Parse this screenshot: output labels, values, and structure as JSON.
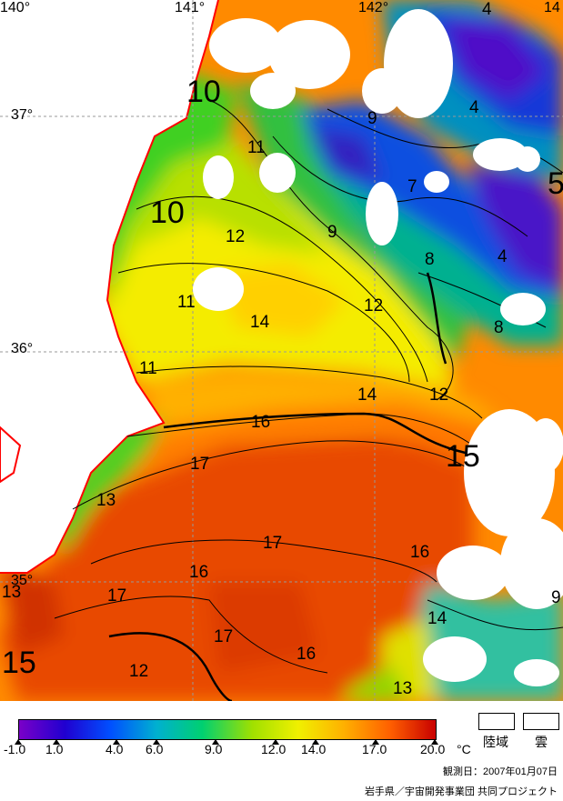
{
  "map": {
    "lon_labels": [
      "140°",
      "141°",
      "142°",
      "14"
    ],
    "lat_labels": [
      "37°",
      "36°",
      "35°"
    ],
    "isotherm_labels": [
      {
        "text": "4",
        "size": "normal"
      },
      {
        "text": "10",
        "size": "big"
      },
      {
        "text": "9",
        "size": "normal"
      },
      {
        "text": "4",
        "size": "normal"
      },
      {
        "text": "11",
        "size": "normal"
      },
      {
        "text": "7",
        "size": "normal"
      },
      {
        "text": "5",
        "size": "big"
      },
      {
        "text": "10",
        "size": "big"
      },
      {
        "text": "12",
        "size": "normal"
      },
      {
        "text": "9",
        "size": "normal"
      },
      {
        "text": "8",
        "size": "normal"
      },
      {
        "text": "4",
        "size": "normal"
      },
      {
        "text": "11",
        "size": "normal"
      },
      {
        "text": "12",
        "size": "normal"
      },
      {
        "text": "14",
        "size": "normal"
      },
      {
        "text": "8",
        "size": "normal"
      },
      {
        "text": "11",
        "size": "normal"
      },
      {
        "text": "14",
        "size": "normal"
      },
      {
        "text": "12",
        "size": "normal"
      },
      {
        "text": "16",
        "size": "normal"
      },
      {
        "text": "15",
        "size": "big"
      },
      {
        "text": "17",
        "size": "normal"
      },
      {
        "text": "13",
        "size": "normal"
      },
      {
        "text": "17",
        "size": "normal"
      },
      {
        "text": "16",
        "size": "normal"
      },
      {
        "text": "16",
        "size": "normal"
      },
      {
        "text": "13",
        "size": "normal"
      },
      {
        "text": "17",
        "size": "normal"
      },
      {
        "text": "9",
        "size": "normal"
      },
      {
        "text": "14",
        "size": "normal"
      },
      {
        "text": "17",
        "size": "normal"
      },
      {
        "text": "15",
        "size": "big"
      },
      {
        "text": "12",
        "size": "normal"
      },
      {
        "text": "16",
        "size": "normal"
      },
      {
        "text": "13",
        "size": "normal"
      }
    ],
    "colors": {
      "land": "#ffffff",
      "cloud": "#ffffff",
      "coastline": "#ff0000",
      "grid": "#999999",
      "contour": "#000000"
    }
  },
  "legend": {
    "scale_labels": [
      "-1.0",
      "1.0",
      "4.0",
      "6.0",
      "9.0",
      "12.0",
      "14.0",
      "17.0",
      "20.0",
      "°C"
    ],
    "scale_min": -1.0,
    "scale_max": 20.0,
    "tick_values": [
      -1.0,
      1.0,
      4.0,
      6.0,
      9.0,
      12.0,
      14.0,
      17.0,
      20.0
    ],
    "color_stops": [
      "#7a00c8",
      "#2000d0",
      "#0050ff",
      "#00b0d0",
      "#00d070",
      "#a0e000",
      "#f0f000",
      "#ffb000",
      "#ff6000",
      "#c80000"
    ],
    "land_label": "陸域",
    "cloud_label": "雲",
    "date_text": "観測日：2007年01月07日",
    "credit_text": "岩手県／宇宙開発事業団 共同プロジェクト"
  }
}
